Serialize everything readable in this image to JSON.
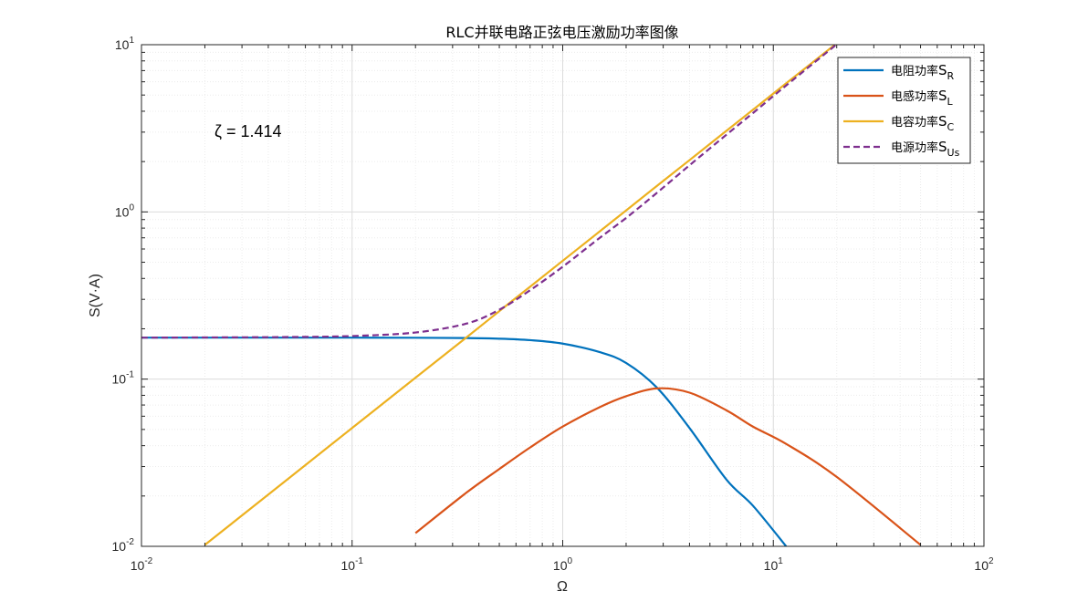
{
  "chart_data": {
    "type": "line",
    "title": "RLC并联电路正弦电压激励功率图像",
    "xlabel": "Ω",
    "ylabel": "S(V·A)",
    "xscale": "log",
    "yscale": "log",
    "xlim": [
      0.01,
      100
    ],
    "ylim": [
      0.01,
      10
    ],
    "grid": true,
    "minor_grid": true,
    "legend_position": "top-right",
    "annotation": "ζ = 1.414",
    "x_ticks": [
      {
        "base": "10",
        "exp": "-2"
      },
      {
        "base": "10",
        "exp": "-1"
      },
      {
        "base": "10",
        "exp": "0"
      },
      {
        "base": "10",
        "exp": "1"
      },
      {
        "base": "10",
        "exp": "2"
      }
    ],
    "y_ticks": [
      {
        "base": "10",
        "exp": "-2"
      },
      {
        "base": "10",
        "exp": "-1"
      },
      {
        "base": "10",
        "exp": "0"
      },
      {
        "base": "10",
        "exp": "1"
      }
    ],
    "x": [
      0.01,
      0.02,
      0.05,
      0.1,
      0.2,
      0.35,
      0.5,
      0.7,
      1,
      1.5,
      2,
      2.8,
      4,
      6,
      8,
      11.5,
      20,
      50
    ],
    "series": [
      {
        "name": "电阻功率",
        "sub": "R",
        "color": "#0072BD",
        "dash": "solid",
        "values": [
          0.177,
          0.177,
          0.177,
          0.177,
          0.1768,
          0.176,
          0.1745,
          0.171,
          0.163,
          0.145,
          0.125,
          0.089,
          0.051,
          0.025,
          0.0175,
          0.01,
          null,
          null
        ]
      },
      {
        "name": "电感功率",
        "sub": "L",
        "color": "#D95319",
        "dash": "solid",
        "values": [
          null,
          null,
          null,
          null,
          0.012,
          0.021,
          0.029,
          0.039,
          0.052,
          0.068,
          0.079,
          0.088,
          0.083,
          0.065,
          0.052,
          0.041,
          0.026,
          0.0102
        ]
      },
      {
        "name": "电容功率",
        "sub": "C",
        "color": "#EDB120",
        "dash": "solid",
        "values": [
          null,
          0.0102,
          0.0255,
          0.051,
          0.102,
          0.178,
          0.255,
          0.357,
          0.51,
          0.765,
          1.02,
          1.43,
          2.04,
          3.06,
          4.08,
          5.87,
          10.2,
          null
        ]
      },
      {
        "name": "电源功率",
        "sub": "Us",
        "color": "#7E2F8E",
        "dash": "dashed",
        "values": [
          0.177,
          0.1775,
          0.1785,
          0.181,
          0.19,
          0.215,
          0.26,
          0.34,
          0.47,
          0.7,
          0.92,
          1.3,
          1.9,
          2.9,
          3.9,
          5.7,
          10.05,
          null
        ]
      }
    ]
  }
}
